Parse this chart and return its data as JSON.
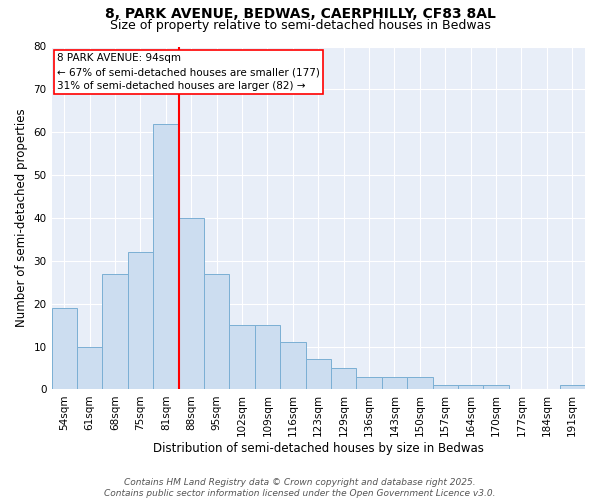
{
  "title1": "8, PARK AVENUE, BEDWAS, CAERPHILLY, CF83 8AL",
  "title2": "Size of property relative to semi-detached houses in Bedwas",
  "xlabel": "Distribution of semi-detached houses by size in Bedwas",
  "ylabel": "Number of semi-detached properties",
  "bar_color": "#ccddf0",
  "bar_edge_color": "#7bafd4",
  "background_color": "#e8eef8",
  "categories": [
    "54sqm",
    "61sqm",
    "68sqm",
    "75sqm",
    "81sqm",
    "88sqm",
    "95sqm",
    "102sqm",
    "109sqm",
    "116sqm",
    "123sqm",
    "129sqm",
    "136sqm",
    "143sqm",
    "150sqm",
    "157sqm",
    "164sqm",
    "170sqm",
    "177sqm",
    "184sqm",
    "191sqm"
  ],
  "values": [
    19,
    10,
    27,
    32,
    62,
    40,
    27,
    15,
    15,
    11,
    7,
    5,
    3,
    3,
    3,
    1,
    1,
    1,
    0,
    0,
    1
  ],
  "annotation_line1": "8 PARK AVENUE: 94sqm",
  "annotation_line2": "← 67% of semi-detached houses are smaller (177)",
  "annotation_line3": "31% of semi-detached houses are larger (82) →",
  "vline_index": 5,
  "ylim": [
    0,
    80
  ],
  "yticks": [
    0,
    10,
    20,
    30,
    40,
    50,
    60,
    70,
    80
  ],
  "footer_line1": "Contains HM Land Registry data © Crown copyright and database right 2025.",
  "footer_line2": "Contains public sector information licensed under the Open Government Licence v3.0.",
  "title_fontsize": 10,
  "subtitle_fontsize": 9,
  "axis_label_fontsize": 8.5,
  "tick_fontsize": 7.5,
  "footer_fontsize": 6.5,
  "annotation_fontsize": 7.5
}
